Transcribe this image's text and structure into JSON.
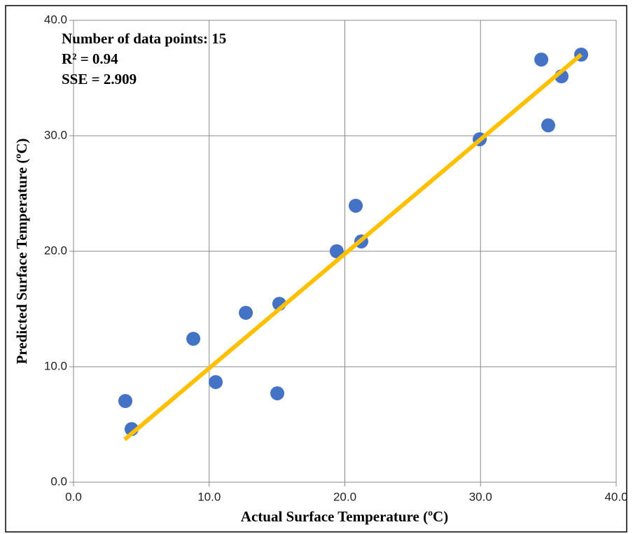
{
  "chart_data": {
    "type": "scatter",
    "x_label": "Actual Surface Temperature (ºC)",
    "y_label": "Predicted Surface Temperature (ºC)",
    "annotations": [
      "Number of data points: 15",
      "R² = 0.94",
      "SSE = 2.909"
    ],
    "xlim": [
      0,
      40
    ],
    "ylim": [
      0,
      40
    ],
    "xticks": [
      {
        "value": 0,
        "label": "0.0"
      },
      {
        "value": 10,
        "label": "10.0"
      },
      {
        "value": 20,
        "label": "20.0"
      },
      {
        "value": 30,
        "label": "30.0"
      },
      {
        "value": 40,
        "label": "40.0"
      }
    ],
    "yticks": [
      {
        "value": 0,
        "label": "0.0"
      },
      {
        "value": 10,
        "label": "10.0"
      },
      {
        "value": 20,
        "label": "20.0"
      },
      {
        "value": 30,
        "label": "30.0"
      },
      {
        "value": 40,
        "label": "40.0"
      }
    ],
    "grid": true,
    "color": "#4472C4",
    "x": [
      3.82,
      4.28,
      8.83,
      10.48,
      12.7,
      15.17,
      15.02,
      19.4,
      20.8,
      21.21,
      29.94,
      34.48,
      34.99,
      35.97,
      37.42
    ],
    "values": [
      7.03,
      4.6,
      12.42,
      8.67,
      14.67,
      15.45,
      7.7,
      20.0,
      23.94,
      20.85,
      29.7,
      36.6,
      30.9,
      35.15,
      37.03
    ],
    "trendline": {
      "color": "#FFC000",
      "x": [
        3.77,
        37.42
      ],
      "values": [
        3.7,
        37.03
      ]
    }
  }
}
